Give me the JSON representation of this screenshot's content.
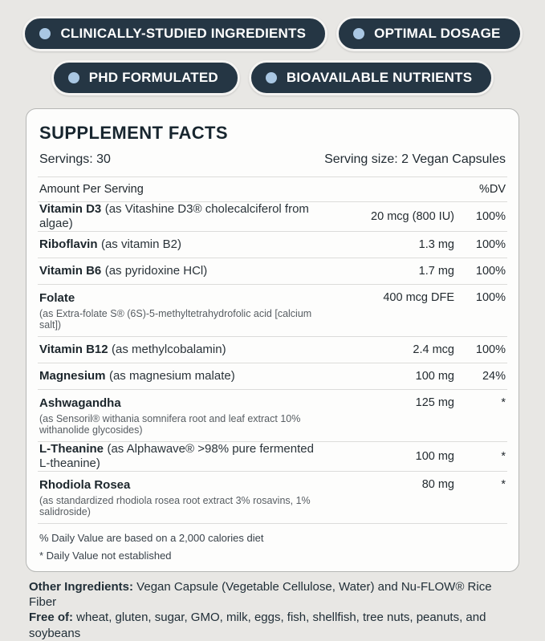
{
  "colors": {
    "page_bg": "#e8e7e4",
    "badge_bg": "#253644",
    "badge_dot": "#a9c7e3",
    "card_bg": "#fdfdfc",
    "divider": "#dcdcda",
    "text": "#1e2a32"
  },
  "badges": [
    {
      "label": "CLINICALLY-STUDIED INGREDIENTS"
    },
    {
      "label": "OPTIMAL DOSAGE"
    },
    {
      "label": "PHD FORMULATED"
    },
    {
      "label": "BIOAVAILABLE NUTRIENTS"
    }
  ],
  "supplement": {
    "title": "SUPPLEMENT FACTS",
    "servings": "Servings: 30",
    "serving_size": "Serving size: 2 Vegan Capsules"
  },
  "table": {
    "header": {
      "left": "Amount Per Serving",
      "right": "%DV"
    },
    "rows": [
      {
        "name": "Vitamin D3",
        "desc": "(as Vitashine D3® cholecalciferol from algae)",
        "stacked": false,
        "amount": "20 mcg (800 IU)",
        "dv": "100%"
      },
      {
        "name": "Riboflavin",
        "desc": "(as vitamin B2)",
        "stacked": false,
        "amount": "1.3 mg",
        "dv": "100%"
      },
      {
        "name": "Vitamin B6",
        "desc": "(as pyridoxine HCl)",
        "stacked": false,
        "amount": "1.7 mg",
        "dv": "100%"
      },
      {
        "name": "Folate",
        "desc": "(as Extra-folate S® (6S)-5-methyltetrahydrofolic acid [calcium salt])",
        "stacked": true,
        "amount": "400 mcg DFE",
        "dv": "100%"
      },
      {
        "name": "Vitamin B12",
        "desc": "(as methylcobalamin)",
        "stacked": false,
        "amount": "2.4 mcg",
        "dv": "100%"
      },
      {
        "name": "Magnesium",
        "desc": "(as magnesium malate)",
        "stacked": false,
        "amount": "100 mg",
        "dv": "24%"
      },
      {
        "name": "Ashwagandha",
        "desc": "(as Sensoril® withania somnifera root and leaf extract 10% withanolide glycosides)",
        "stacked": true,
        "amount": "125 mg",
        "dv": "*"
      },
      {
        "name": "L-Theanine",
        "desc": "(as Alphawave® >98% pure fermented L-theanine)",
        "stacked": false,
        "amount": "100 mg",
        "dv": "*"
      },
      {
        "name": "Rhodiola Rosea",
        "desc": "(as standardized rhodiola rosea root extract 3% rosavins, 1% salidroside)",
        "stacked": true,
        "amount": "80 mg",
        "dv": "*"
      }
    ],
    "footnotes": [
      "% Daily Value are based on a 2,000 calories diet",
      "* Daily Value not established"
    ]
  },
  "footer": {
    "other_ingredients_label": "Other Ingredients:",
    "other_ingredients_text": " Vegan Capsule (Vegetable Cellulose, Water) and Nu-FLOW® Rice Fiber",
    "free_of_label": "Free of:",
    "free_of_text": " wheat, gluten, sugar, GMO, milk, eggs, fish, shellfish, tree nuts, peanuts, and soybeans"
  }
}
